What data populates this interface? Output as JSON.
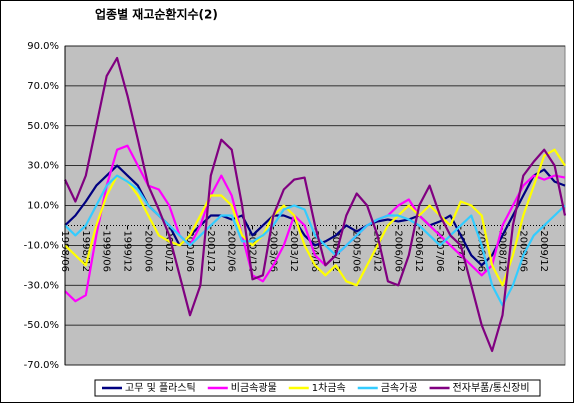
{
  "chart_data": {
    "type": "line",
    "title": "업종별 재고순환지수(2)",
    "categories": [
      "1998/06",
      null,
      "1998/12",
      null,
      "1999/06",
      null,
      "1999/12",
      null,
      "2000/06",
      null,
      "2000/12",
      null,
      "2001/06",
      null,
      "2001/12",
      null,
      "2002/06",
      null,
      "2002/12",
      null,
      "2003/06",
      null,
      "2003/12",
      null,
      "2004/06",
      null,
      "2004/12",
      null,
      "2005/06",
      null,
      "2005/12",
      null,
      "2006/06",
      null,
      "2006/12",
      null,
      "2007/06",
      null,
      "2007/12",
      null,
      "2008/06",
      null,
      "2008/12",
      null,
      "2009/06",
      null,
      "2009/12",
      null,
      null
    ],
    "series": [
      {
        "name": "고무 및 플라스틱",
        "color": "#000080",
        "values": [
          0,
          5,
          12,
          20,
          25,
          30,
          25,
          20,
          10,
          5,
          0,
          -10,
          -5,
          0,
          5,
          5,
          3,
          5,
          -5,
          0,
          5,
          5,
          3,
          -5,
          -10,
          -8,
          -5,
          0,
          -3,
          0,
          2,
          3,
          2,
          3,
          5,
          0,
          2,
          5,
          -5,
          -15,
          -20,
          -15,
          -5,
          5,
          15,
          25,
          28,
          22,
          20
        ]
      },
      {
        "name": "비금속광물",
        "color": "#ff00ff",
        "values": [
          -33,
          -38,
          -35,
          -5,
          20,
          38,
          40,
          30,
          20,
          18,
          10,
          -5,
          -10,
          0,
          15,
          25,
          15,
          -5,
          -25,
          -28,
          -20,
          -10,
          5,
          0,
          -15,
          -20,
          -15,
          -10,
          -5,
          0,
          3,
          5,
          10,
          13,
          5,
          0,
          -5,
          -10,
          -15,
          -20,
          -25,
          -20,
          0,
          10,
          20,
          25,
          23,
          25,
          24
        ]
      },
      {
        "name": "1차금속",
        "color": "#ffff00",
        "values": [
          -10,
          -15,
          -20,
          0,
          15,
          25,
          22,
          15,
          5,
          -5,
          -8,
          -10,
          -5,
          5,
          15,
          15,
          10,
          -5,
          -10,
          -5,
          5,
          10,
          5,
          -10,
          -20,
          -25,
          -20,
          -28,
          -30,
          -20,
          -10,
          0,
          5,
          10,
          5,
          10,
          5,
          0,
          12,
          10,
          5,
          -20,
          -30,
          -15,
          5,
          20,
          35,
          38,
          30
        ]
      },
      {
        "name": "금속가공",
        "color": "#33ccff",
        "values": [
          0,
          -5,
          0,
          10,
          20,
          25,
          22,
          18,
          10,
          5,
          0,
          -5,
          -10,
          -5,
          0,
          5,
          5,
          -8,
          -8,
          -5,
          0,
          8,
          10,
          8,
          -5,
          -10,
          -15,
          -10,
          -5,
          0,
          3,
          5,
          5,
          3,
          0,
          -5,
          -10,
          -5,
          0,
          5,
          -10,
          -30,
          -40,
          -30,
          -15,
          -5,
          0,
          5,
          10
        ]
      },
      {
        "name": "전자부품/통신장비",
        "color": "#800080",
        "values": [
          23,
          12,
          25,
          50,
          75,
          84,
          65,
          43,
          20,
          8,
          -5,
          -25,
          -45,
          -30,
          25,
          43,
          38,
          10,
          -27,
          -25,
          5,
          18,
          23,
          24,
          0,
          -20,
          -15,
          5,
          16,
          10,
          -5,
          -28,
          -30,
          -15,
          10,
          20,
          5,
          -5,
          -10,
          -30,
          -50,
          -63,
          -45,
          0,
          25,
          32,
          38,
          30,
          5
        ]
      }
    ],
    "ylim": [
      -70,
      90
    ],
    "yticks": [
      {
        "value": -70,
        "label": "-70.0%"
      },
      {
        "value": -50,
        "label": "-50.0%"
      },
      {
        "value": -30,
        "label": "-30.0%"
      },
      {
        "value": -10,
        "label": "-10.0%"
      },
      {
        "value": 10,
        "label": "10.0%"
      },
      {
        "value": 30,
        "label": "30.0%"
      },
      {
        "value": 50,
        "label": "50.0%"
      },
      {
        "value": 70,
        "label": "70.0%"
      },
      {
        "value": 90,
        "label": "90.0%"
      }
    ],
    "grid": true,
    "legend": "bottom",
    "plot_background": "#c0c0c0"
  }
}
